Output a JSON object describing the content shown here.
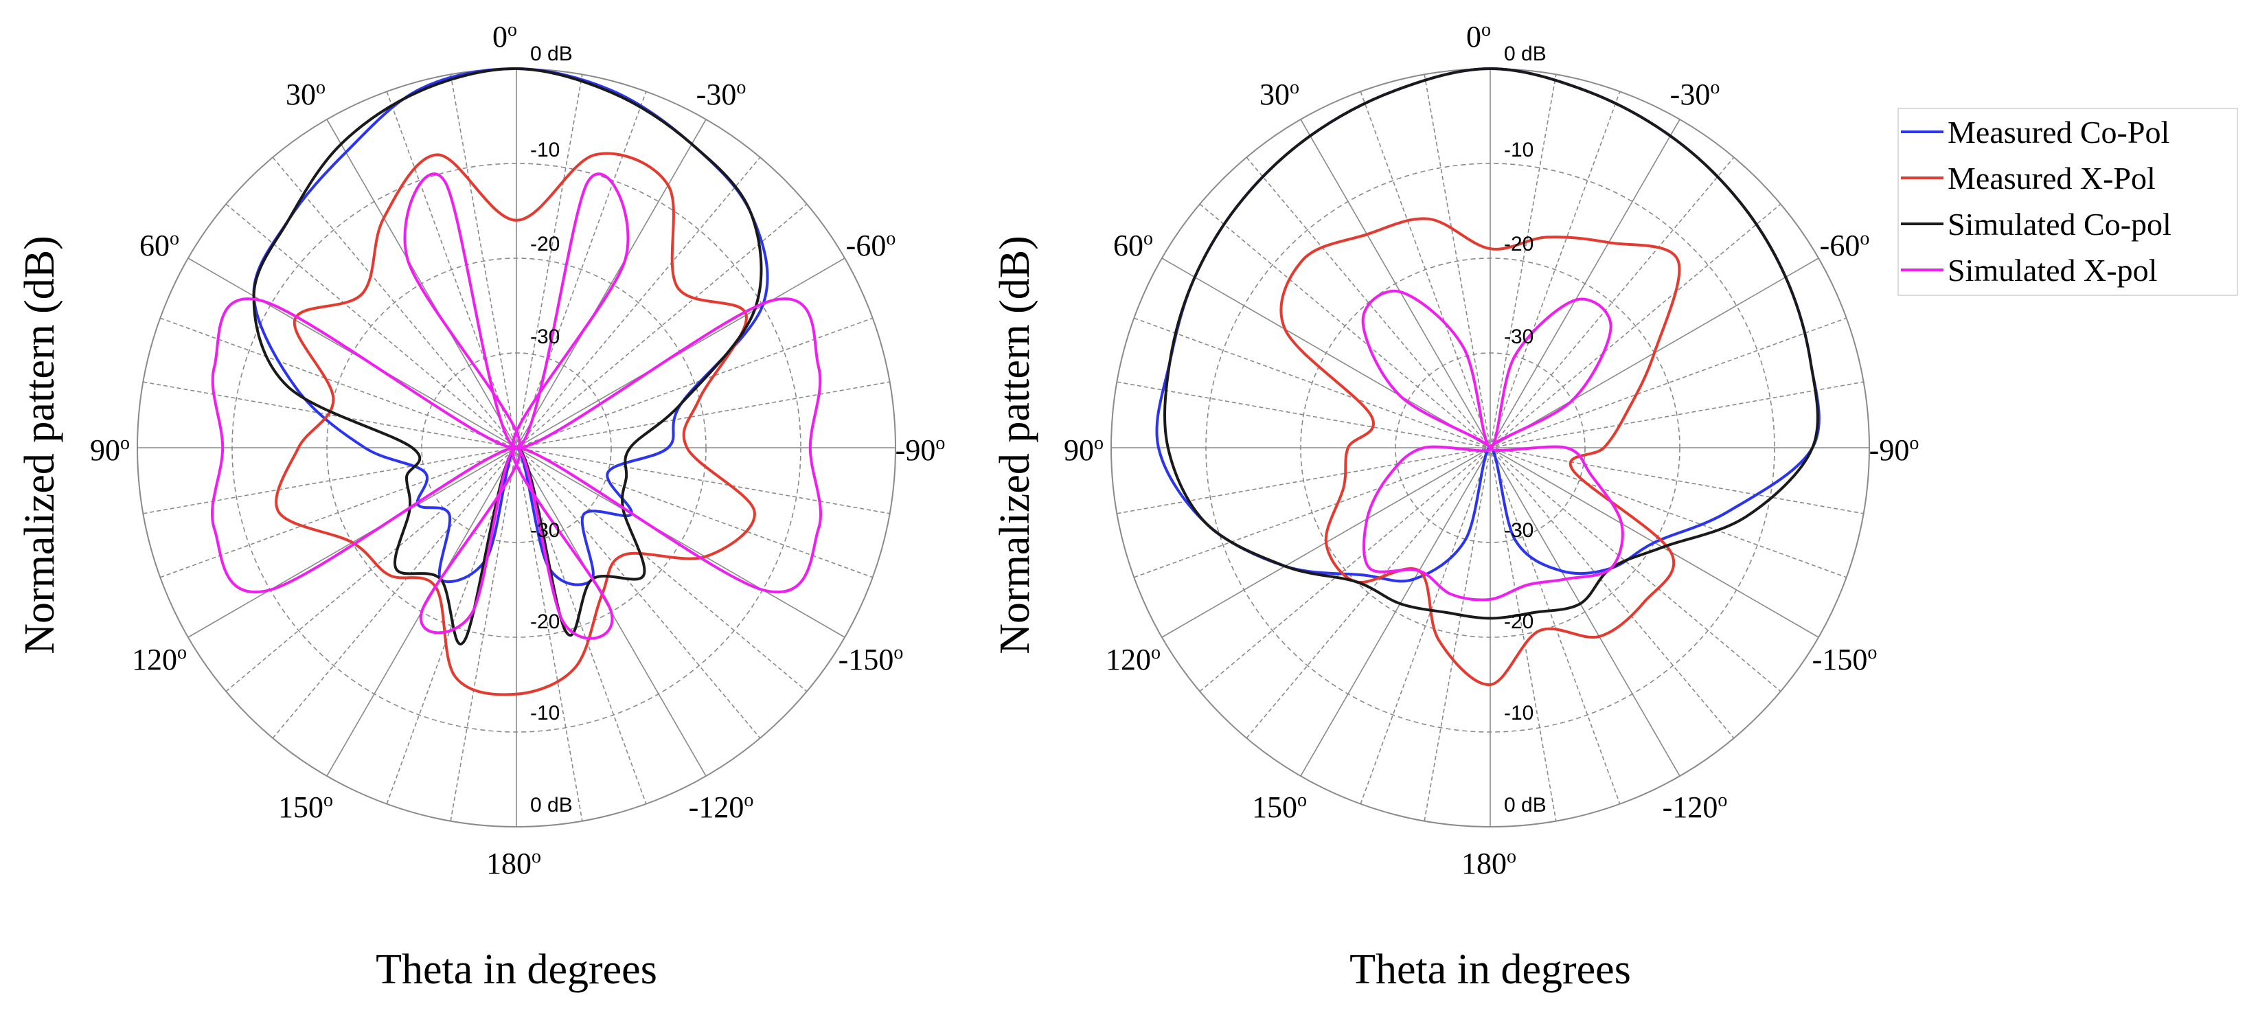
{
  "colors": {
    "measured_copol": "#2b35f0",
    "measured_xpol": "#e53a2f",
    "simulated_copol": "#1a1a1a",
    "simulated_xpol": "#f01ef0",
    "grid": "#8a8a8a"
  },
  "legend": {
    "items": [
      {
        "label": "Measured Co-Pol",
        "color": "#2b35f0"
      },
      {
        "label": "Measured X-Pol",
        "color": "#e53a2f"
      },
      {
        "label": "Simulated Co-pol",
        "color": "#1a1a1a"
      },
      {
        "label": "Simulated X-pol",
        "color": "#f01ef0"
      }
    ]
  },
  "chart_data": [
    {
      "type": "polar-line",
      "ylabel": "Normalized pattern (dB)",
      "xlabel": "Theta in degrees",
      "rlim_db": [
        -40,
        0
      ],
      "ring_labels_top": [
        "0 dB",
        "-10",
        "-20",
        "-30"
      ],
      "ring_labels_bottom": [
        "-30",
        "-20",
        "-10",
        "0 dB"
      ],
      "angle_labels": {
        "top": "0",
        "bottom": "180",
        "left": "90",
        "right": "-90",
        "upper_left": "30",
        "mid_left": "60",
        "lower_left": "120",
        "bottom_left": "150",
        "upper_right": "-30",
        "mid_right": "-60",
        "lower_right": "-150",
        "bottom_right": "-120"
      },
      "series": [
        {
          "name": "Measured Co-Pol",
          "theta_deg": [
            0,
            15,
            30,
            45,
            60,
            75,
            90,
            105,
            120,
            135,
            150,
            165,
            180,
            195,
            210,
            225,
            240,
            255,
            270,
            285,
            300,
            315,
            330,
            345
          ],
          "db": [
            0,
            -0.8,
            -4,
            -6,
            -8,
            -16,
            -24,
            -30,
            -28,
            -30,
            -24,
            -28,
            -40,
            -27,
            -24,
            -30,
            -26,
            -30,
            -24,
            -22,
            -10,
            -5,
            -3,
            -1
          ]
        },
        {
          "name": "Measured X-Pol",
          "theta_deg": [
            0,
            15,
            30,
            45,
            60,
            75,
            90,
            105,
            120,
            135,
            150,
            165,
            180,
            195,
            210,
            225,
            240,
            255,
            270,
            285,
            300,
            315,
            330,
            345
          ],
          "db": [
            -16,
            -8,
            -12,
            -17,
            -13,
            -20,
            -17,
            -14,
            -20,
            -21,
            -23,
            -15,
            -14,
            -16,
            -22,
            -24,
            -17,
            -14,
            -22,
            -20,
            -12,
            -16,
            -8,
            -8
          ]
        },
        {
          "name": "Simulated Co-pol",
          "theta_deg": [
            0,
            15,
            30,
            45,
            60,
            75,
            90,
            105,
            120,
            135,
            150,
            165,
            180,
            195,
            210,
            225,
            240,
            255,
            270,
            285,
            300,
            315,
            330,
            345
          ],
          "db": [
            0,
            -1,
            -3,
            -6,
            -8,
            -15,
            -29,
            -28,
            -27,
            -22,
            -24,
            -19,
            -40,
            -20,
            -24,
            -21,
            -27,
            -28,
            -28,
            -22,
            -11,
            -5,
            -3,
            -1.2
          ]
        },
        {
          "name": "Simulated X-pol",
          "theta_deg": [
            0,
            15,
            30,
            45,
            60,
            75,
            90,
            105,
            120,
            135,
            150,
            165,
            180,
            195,
            210,
            225,
            240,
            255,
            270,
            285,
            300,
            315,
            330,
            345
          ],
          "db": [
            -40,
            -11,
            -17,
            -40,
            -9,
            -7,
            -9,
            -7,
            -10,
            -40,
            -20,
            -22,
            -40,
            -21,
            -20,
            -40,
            -10,
            -7,
            -9,
            -7,
            -9,
            -40,
            -17,
            -11
          ]
        }
      ]
    },
    {
      "type": "polar-line",
      "ylabel": "Normalized pattern (dB)",
      "xlabel": "Theta in degrees",
      "rlim_db": [
        -40,
        0
      ],
      "ring_labels_top": [
        "0 dB",
        "-10",
        "-20",
        "-30"
      ],
      "ring_labels_bottom": [
        "-30",
        "-20",
        "-10",
        "0 dB"
      ],
      "angle_labels": {
        "top": "0",
        "bottom": "180",
        "left": "90",
        "right": "-90",
        "upper_left": "30",
        "mid_left": "60",
        "lower_left": "120",
        "bottom_left": "150",
        "upper_right": "-30",
        "mid_right": "-60",
        "lower_right": "-150",
        "bottom_right": "-120"
      },
      "series": [
        {
          "name": "Measured Co-Pol",
          "theta_deg": [
            0,
            15,
            30,
            45,
            60,
            75,
            90,
            105,
            120,
            135,
            150,
            165,
            180,
            195,
            210,
            225,
            240,
            255,
            270,
            285,
            300,
            315,
            330,
            345
          ],
          "db": [
            0,
            -1,
            -2,
            -3,
            -4,
            -5,
            -5,
            -9,
            -15,
            -21,
            -24,
            -30,
            -40,
            -30,
            -25,
            -22,
            -20,
            -14,
            -6,
            -5,
            -4,
            -3,
            -2,
            -1
          ]
        },
        {
          "name": "Measured X-Pol",
          "theta_deg": [
            0,
            15,
            30,
            45,
            60,
            75,
            90,
            105,
            120,
            135,
            150,
            165,
            180,
            195,
            210,
            225,
            240,
            255,
            270,
            285,
            300,
            315,
            330,
            345
          ],
          "db": [
            -19,
            -15,
            -14,
            -12,
            -15,
            -27,
            -25,
            -24,
            -20,
            -20,
            -25,
            -19,
            -15,
            -20,
            -17,
            -17,
            -18,
            -31,
            -28,
            -25,
            -20,
            -12,
            -15,
            -17
          ]
        },
        {
          "name": "Simulated Co-pol",
          "theta_deg": [
            0,
            15,
            30,
            45,
            60,
            75,
            90,
            105,
            120,
            135,
            150,
            165,
            180,
            195,
            210,
            225,
            240,
            255,
            270,
            285,
            300,
            315,
            330,
            345
          ],
          "db": [
            0,
            -1,
            -2,
            -3,
            -4,
            -5,
            -6,
            -9,
            -15,
            -20,
            -21,
            -22,
            -22,
            -22,
            -21,
            -22,
            -19,
            -12,
            -6,
            -5,
            -4,
            -3,
            -2,
            -1
          ]
        },
        {
          "name": "Simulated X-pol",
          "theta_deg": [
            0,
            15,
            30,
            45,
            60,
            75,
            90,
            105,
            120,
            135,
            150,
            165,
            180,
            195,
            210,
            225,
            240,
            255,
            270,
            285,
            300,
            315,
            330,
            345
          ],
          "db": [
            -40,
            -29,
            -21,
            -21,
            -29,
            -40,
            -33,
            -29,
            -25,
            -22,
            -25,
            -24,
            -24,
            -25,
            -24,
            -22,
            -24,
            -29,
            -32,
            -40,
            -30,
            -22,
            -22,
            -30
          ]
        }
      ]
    }
  ]
}
